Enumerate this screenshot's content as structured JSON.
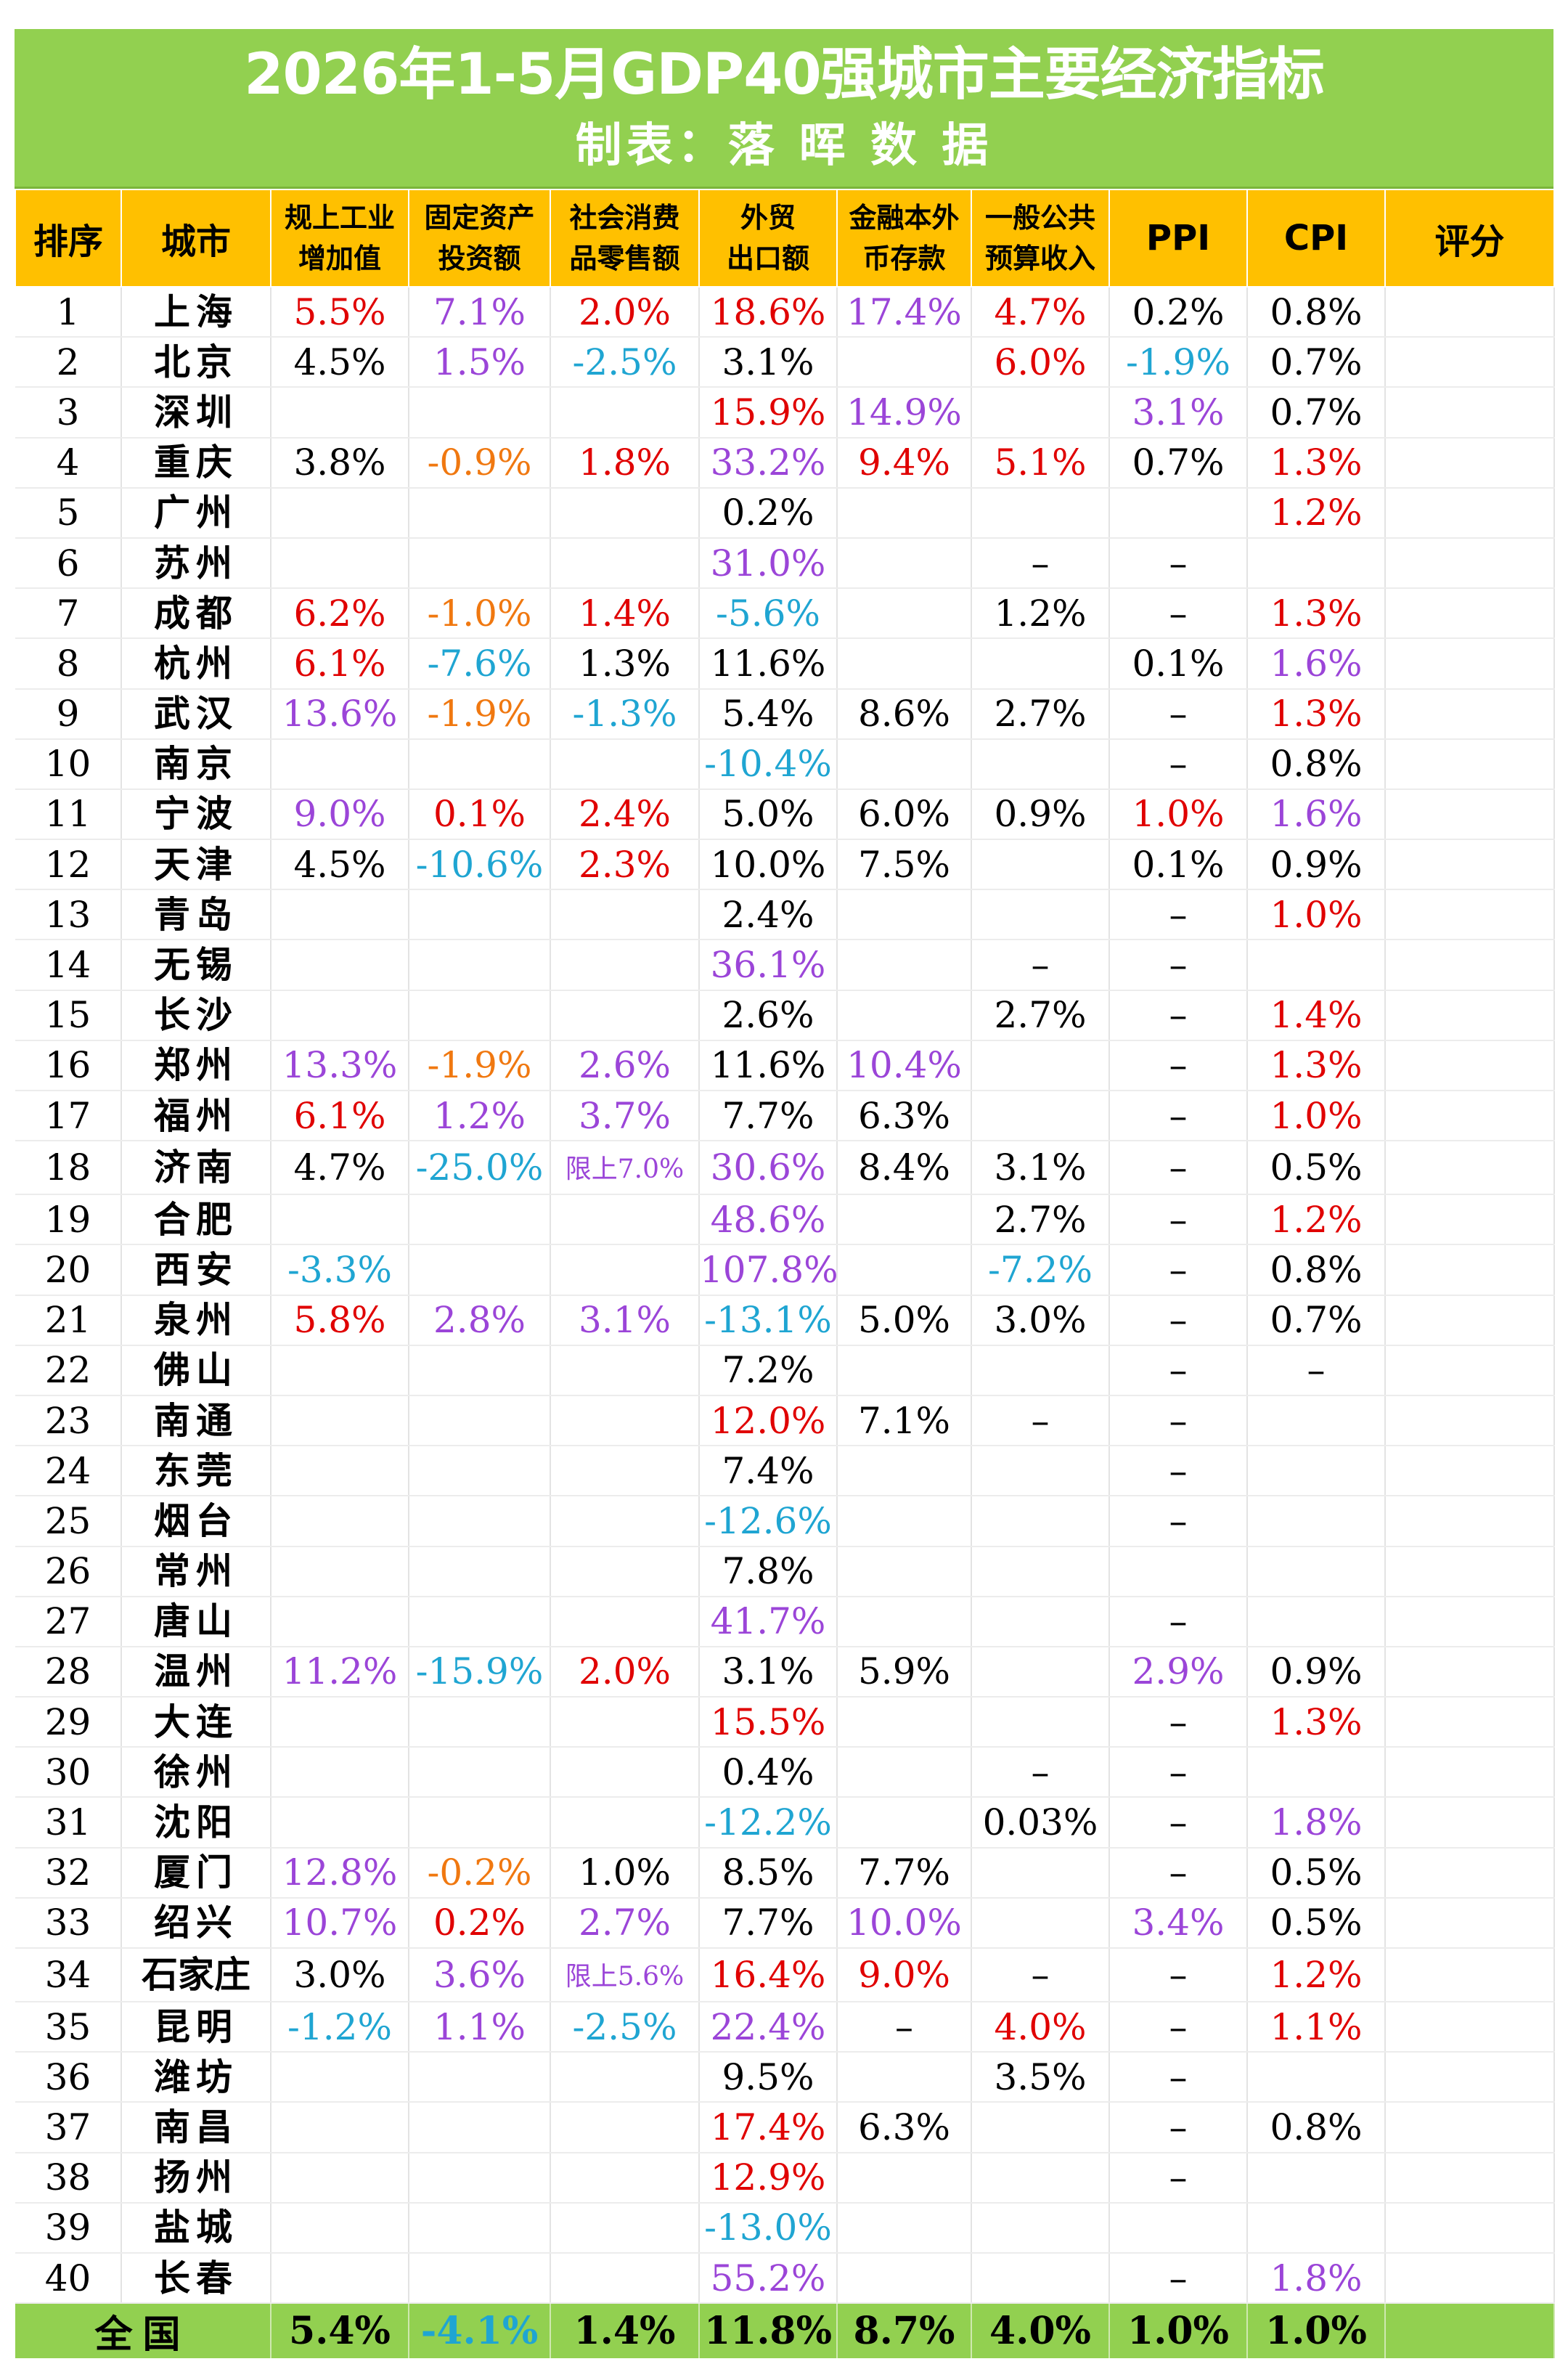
{
  "title": "2026年1-5月GDP40强城市主要经济指标",
  "subtitle": "制表：落 晖 数 据",
  "colors": {
    "red": "#e00000",
    "purple": "#9b45d8",
    "cyan": "#1fa5d2",
    "orange": "#f07810",
    "black": "#000000",
    "green": "#92d050",
    "header": "#ffc000"
  },
  "columns": [
    {
      "l1": "排序"
    },
    {
      "l1": "城市"
    },
    {
      "l1": "规上工业",
      "l2": "增加值"
    },
    {
      "l1": "固定资产",
      "l2": "投资额"
    },
    {
      "l1": "社会消费",
      "l2": "品零售额"
    },
    {
      "l1": "外贸",
      "l2": "出口额"
    },
    {
      "l1": "金融本外",
      "l2": "币存款"
    },
    {
      "l1": "一般公共",
      "l2": "预算收入"
    },
    {
      "l1": "PPI"
    },
    {
      "l1": "CPI"
    },
    {
      "l1": "评分"
    }
  ],
  "rows": [
    {
      "rank": "1",
      "city": "上海",
      "ind": {
        "v": "5.5%",
        "c": "red"
      },
      "inv": {
        "v": "7.1%",
        "c": "purple"
      },
      "ret": {
        "v": "2.0%",
        "c": "red"
      },
      "exp": {
        "v": "18.6%",
        "c": "red"
      },
      "dep": {
        "v": "17.4%",
        "c": "purple"
      },
      "rev": {
        "v": "4.7%",
        "c": "red"
      },
      "ppi": {
        "v": "0.2%",
        "c": "black"
      },
      "cpi": {
        "v": "0.8%",
        "c": "black"
      }
    },
    {
      "rank": "2",
      "city": "北京",
      "ind": {
        "v": "4.5%",
        "c": "black"
      },
      "inv": {
        "v": "1.5%",
        "c": "purple"
      },
      "ret": {
        "v": "-2.5%",
        "c": "cyan"
      },
      "exp": {
        "v": "3.1%",
        "c": "black"
      },
      "rev": {
        "v": "6.0%",
        "c": "red"
      },
      "ppi": {
        "v": "-1.9%",
        "c": "cyan"
      },
      "cpi": {
        "v": "0.7%",
        "c": "black"
      }
    },
    {
      "rank": "3",
      "city": "深圳",
      "exp": {
        "v": "15.9%",
        "c": "red"
      },
      "dep": {
        "v": "14.9%",
        "c": "purple"
      },
      "ppi": {
        "v": "3.1%",
        "c": "purple"
      },
      "cpi": {
        "v": "0.7%",
        "c": "black"
      }
    },
    {
      "rank": "4",
      "city": "重庆",
      "ind": {
        "v": "3.8%",
        "c": "black"
      },
      "inv": {
        "v": "-0.9%",
        "c": "orange"
      },
      "ret": {
        "v": "1.8%",
        "c": "red"
      },
      "exp": {
        "v": "33.2%",
        "c": "purple"
      },
      "dep": {
        "v": "9.4%",
        "c": "red"
      },
      "rev": {
        "v": "5.1%",
        "c": "red"
      },
      "ppi": {
        "v": "0.7%",
        "c": "black"
      },
      "cpi": {
        "v": "1.3%",
        "c": "red"
      }
    },
    {
      "rank": "5",
      "city": "广州",
      "exp": {
        "v": "0.2%",
        "c": "black"
      },
      "cpi": {
        "v": "1.2%",
        "c": "red"
      }
    },
    {
      "rank": "6",
      "city": "苏州",
      "exp": {
        "v": "31.0%",
        "c": "purple"
      },
      "rev": {
        "v": "–",
        "c": "black"
      },
      "ppi": {
        "v": "–",
        "c": "black"
      }
    },
    {
      "rank": "7",
      "city": "成都",
      "ind": {
        "v": "6.2%",
        "c": "red"
      },
      "inv": {
        "v": "-1.0%",
        "c": "orange"
      },
      "ret": {
        "v": "1.4%",
        "c": "red"
      },
      "exp": {
        "v": "-5.6%",
        "c": "cyan"
      },
      "rev": {
        "v": "1.2%",
        "c": "black"
      },
      "ppi": {
        "v": "–",
        "c": "black"
      },
      "cpi": {
        "v": "1.3%",
        "c": "red"
      }
    },
    {
      "rank": "8",
      "city": "杭州",
      "ind": {
        "v": "6.1%",
        "c": "red"
      },
      "inv": {
        "v": "-7.6%",
        "c": "cyan"
      },
      "ret": {
        "v": "1.3%",
        "c": "black"
      },
      "exp": {
        "v": "11.6%",
        "c": "black"
      },
      "ppi": {
        "v": "0.1%",
        "c": "black"
      },
      "cpi": {
        "v": "1.6%",
        "c": "purple"
      }
    },
    {
      "rank": "9",
      "city": "武汉",
      "ind": {
        "v": "13.6%",
        "c": "purple"
      },
      "inv": {
        "v": "-1.9%",
        "c": "orange"
      },
      "ret": {
        "v": "-1.3%",
        "c": "cyan"
      },
      "exp": {
        "v": "5.4%",
        "c": "black"
      },
      "dep": {
        "v": "8.6%",
        "c": "black"
      },
      "rev": {
        "v": "2.7%",
        "c": "black"
      },
      "ppi": {
        "v": "–",
        "c": "black"
      },
      "cpi": {
        "v": "1.3%",
        "c": "red"
      }
    },
    {
      "rank": "10",
      "city": "南京",
      "exp": {
        "v": "-10.4%",
        "c": "cyan"
      },
      "ppi": {
        "v": "–",
        "c": "black"
      },
      "cpi": {
        "v": "0.8%",
        "c": "black"
      }
    },
    {
      "rank": "11",
      "city": "宁波",
      "ind": {
        "v": "9.0%",
        "c": "purple"
      },
      "inv": {
        "v": "0.1%",
        "c": "red"
      },
      "ret": {
        "v": "2.4%",
        "c": "red"
      },
      "exp": {
        "v": "5.0%",
        "c": "black"
      },
      "dep": {
        "v": "6.0%",
        "c": "black"
      },
      "rev": {
        "v": "0.9%",
        "c": "black"
      },
      "ppi": {
        "v": "1.0%",
        "c": "red"
      },
      "cpi": {
        "v": "1.6%",
        "c": "purple"
      }
    },
    {
      "rank": "12",
      "city": "天津",
      "ind": {
        "v": "4.5%",
        "c": "black"
      },
      "inv": {
        "v": "-10.6%",
        "c": "cyan"
      },
      "ret": {
        "v": "2.3%",
        "c": "red"
      },
      "exp": {
        "v": "10.0%",
        "c": "black"
      },
      "dep": {
        "v": "7.5%",
        "c": "black"
      },
      "ppi": {
        "v": "0.1%",
        "c": "black"
      },
      "cpi": {
        "v": "0.9%",
        "c": "black"
      }
    },
    {
      "rank": "13",
      "city": "青岛",
      "exp": {
        "v": "2.4%",
        "c": "black"
      },
      "ppi": {
        "v": "–",
        "c": "black"
      },
      "cpi": {
        "v": "1.0%",
        "c": "red"
      }
    },
    {
      "rank": "14",
      "city": "无锡",
      "exp": {
        "v": "36.1%",
        "c": "purple"
      },
      "rev": {
        "v": "–",
        "c": "black"
      },
      "ppi": {
        "v": "–",
        "c": "black"
      }
    },
    {
      "rank": "15",
      "city": "长沙",
      "exp": {
        "v": "2.6%",
        "c": "black"
      },
      "rev": {
        "v": "2.7%",
        "c": "black"
      },
      "ppi": {
        "v": "–",
        "c": "black"
      },
      "cpi": {
        "v": "1.4%",
        "c": "red"
      }
    },
    {
      "rank": "16",
      "city": "郑州",
      "ind": {
        "v": "13.3%",
        "c": "purple"
      },
      "inv": {
        "v": "-1.9%",
        "c": "orange"
      },
      "ret": {
        "v": "2.6%",
        "c": "purple"
      },
      "exp": {
        "v": "11.6%",
        "c": "black"
      },
      "dep": {
        "v": "10.4%",
        "c": "purple"
      },
      "ppi": {
        "v": "–",
        "c": "black"
      },
      "cpi": {
        "v": "1.3%",
        "c": "red"
      }
    },
    {
      "rank": "17",
      "city": "福州",
      "ind": {
        "v": "6.1%",
        "c": "red"
      },
      "inv": {
        "v": "1.2%",
        "c": "purple"
      },
      "ret": {
        "v": "3.7%",
        "c": "purple"
      },
      "exp": {
        "v": "7.7%",
        "c": "black"
      },
      "dep": {
        "v": "6.3%",
        "c": "black"
      },
      "ppi": {
        "v": "–",
        "c": "black"
      },
      "cpi": {
        "v": "1.0%",
        "c": "red"
      }
    },
    {
      "rank": "18",
      "city": "济南",
      "ind": {
        "v": "4.7%",
        "c": "black"
      },
      "inv": {
        "v": "-25.0%",
        "c": "cyan"
      },
      "ret": {
        "v": "限上7.0%",
        "c": "purple",
        "small": true
      },
      "exp": {
        "v": "30.6%",
        "c": "purple"
      },
      "dep": {
        "v": "8.4%",
        "c": "black"
      },
      "rev": {
        "v": "3.1%",
        "c": "black"
      },
      "ppi": {
        "v": "–",
        "c": "black"
      },
      "cpi": {
        "v": "0.5%",
        "c": "black"
      }
    },
    {
      "rank": "19",
      "city": "合肥",
      "exp": {
        "v": "48.6%",
        "c": "purple"
      },
      "rev": {
        "v": "2.7%",
        "c": "black"
      },
      "ppi": {
        "v": "–",
        "c": "black"
      },
      "cpi": {
        "v": "1.2%",
        "c": "red"
      }
    },
    {
      "rank": "20",
      "city": "西安",
      "ind": {
        "v": "-3.3%",
        "c": "cyan"
      },
      "exp": {
        "v": "107.8%",
        "c": "purple"
      },
      "rev": {
        "v": "-7.2%",
        "c": "cyan"
      },
      "ppi": {
        "v": "–",
        "c": "black"
      },
      "cpi": {
        "v": "0.8%",
        "c": "black"
      }
    },
    {
      "rank": "21",
      "city": "泉州",
      "ind": {
        "v": "5.8%",
        "c": "red"
      },
      "inv": {
        "v": "2.8%",
        "c": "purple"
      },
      "ret": {
        "v": "3.1%",
        "c": "purple"
      },
      "exp": {
        "v": "-13.1%",
        "c": "cyan"
      },
      "dep": {
        "v": "5.0%",
        "c": "black"
      },
      "rev": {
        "v": "3.0%",
        "c": "black"
      },
      "ppi": {
        "v": "–",
        "c": "black"
      },
      "cpi": {
        "v": "0.7%",
        "c": "black"
      }
    },
    {
      "rank": "22",
      "city": "佛山",
      "exp": {
        "v": "7.2%",
        "c": "black"
      },
      "ppi": {
        "v": "–",
        "c": "black"
      },
      "cpi": {
        "v": "–",
        "c": "black"
      }
    },
    {
      "rank": "23",
      "city": "南通",
      "exp": {
        "v": "12.0%",
        "c": "red"
      },
      "dep": {
        "v": "7.1%",
        "c": "black"
      },
      "rev": {
        "v": "–",
        "c": "black"
      },
      "ppi": {
        "v": "–",
        "c": "black"
      }
    },
    {
      "rank": "24",
      "city": "东莞",
      "exp": {
        "v": "7.4%",
        "c": "black"
      },
      "ppi": {
        "v": "–",
        "c": "black"
      }
    },
    {
      "rank": "25",
      "city": "烟台",
      "exp": {
        "v": "-12.6%",
        "c": "cyan"
      },
      "ppi": {
        "v": "–",
        "c": "black"
      }
    },
    {
      "rank": "26",
      "city": "常州",
      "exp": {
        "v": "7.8%",
        "c": "black"
      }
    },
    {
      "rank": "27",
      "city": "唐山",
      "exp": {
        "v": "41.7%",
        "c": "purple"
      },
      "ppi": {
        "v": "–",
        "c": "black"
      }
    },
    {
      "rank": "28",
      "city": "温州",
      "ind": {
        "v": "11.2%",
        "c": "purple"
      },
      "inv": {
        "v": "-15.9%",
        "c": "cyan"
      },
      "ret": {
        "v": "2.0%",
        "c": "red"
      },
      "exp": {
        "v": "3.1%",
        "c": "black"
      },
      "dep": {
        "v": "5.9%",
        "c": "black"
      },
      "ppi": {
        "v": "2.9%",
        "c": "purple"
      },
      "cpi": {
        "v": "0.9%",
        "c": "black"
      }
    },
    {
      "rank": "29",
      "city": "大连",
      "exp": {
        "v": "15.5%",
        "c": "red"
      },
      "ppi": {
        "v": "–",
        "c": "black"
      },
      "cpi": {
        "v": "1.3%",
        "c": "red"
      }
    },
    {
      "rank": "30",
      "city": "徐州",
      "exp": {
        "v": "0.4%",
        "c": "black"
      },
      "rev": {
        "v": "–",
        "c": "black"
      },
      "ppi": {
        "v": "–",
        "c": "black"
      }
    },
    {
      "rank": "31",
      "city": "沈阳",
      "exp": {
        "v": "-12.2%",
        "c": "cyan"
      },
      "rev": {
        "v": "0.03%",
        "c": "black"
      },
      "ppi": {
        "v": "–",
        "c": "black"
      },
      "cpi": {
        "v": "1.8%",
        "c": "purple"
      }
    },
    {
      "rank": "32",
      "city": "厦门",
      "ind": {
        "v": "12.8%",
        "c": "purple"
      },
      "inv": {
        "v": "-0.2%",
        "c": "orange"
      },
      "ret": {
        "v": "1.0%",
        "c": "black"
      },
      "exp": {
        "v": "8.5%",
        "c": "black"
      },
      "dep": {
        "v": "7.7%",
        "c": "black"
      },
      "ppi": {
        "v": "–",
        "c": "black"
      },
      "cpi": {
        "v": "0.5%",
        "c": "black"
      }
    },
    {
      "rank": "33",
      "city": "绍兴",
      "ind": {
        "v": "10.7%",
        "c": "purple"
      },
      "inv": {
        "v": "0.2%",
        "c": "red"
      },
      "ret": {
        "v": "2.7%",
        "c": "purple"
      },
      "exp": {
        "v": "7.7%",
        "c": "black"
      },
      "dep": {
        "v": "10.0%",
        "c": "purple"
      },
      "ppi": {
        "v": "3.4%",
        "c": "purple"
      },
      "cpi": {
        "v": "0.5%",
        "c": "black"
      }
    },
    {
      "rank": "34",
      "city": "石家庄",
      "long": true,
      "ind": {
        "v": "3.0%",
        "c": "black"
      },
      "inv": {
        "v": "3.6%",
        "c": "purple"
      },
      "ret": {
        "v": "限上5.6%",
        "c": "purple",
        "small": true
      },
      "exp": {
        "v": "16.4%",
        "c": "red"
      },
      "dep": {
        "v": "9.0%",
        "c": "red"
      },
      "rev": {
        "v": "–",
        "c": "black"
      },
      "ppi": {
        "v": "–",
        "c": "black"
      },
      "cpi": {
        "v": "1.2%",
        "c": "red"
      }
    },
    {
      "rank": "35",
      "city": "昆明",
      "ind": {
        "v": "-1.2%",
        "c": "cyan"
      },
      "inv": {
        "v": "1.1%",
        "c": "purple"
      },
      "ret": {
        "v": "-2.5%",
        "c": "cyan"
      },
      "exp": {
        "v": "22.4%",
        "c": "purple"
      },
      "dep": {
        "v": "–",
        "c": "black"
      },
      "rev": {
        "v": "4.0%",
        "c": "red"
      },
      "ppi": {
        "v": "–",
        "c": "black"
      },
      "cpi": {
        "v": "1.1%",
        "c": "red"
      }
    },
    {
      "rank": "36",
      "city": "潍坊",
      "exp": {
        "v": "9.5%",
        "c": "black"
      },
      "rev": {
        "v": "3.5%",
        "c": "black"
      },
      "ppi": {
        "v": "–",
        "c": "black"
      }
    },
    {
      "rank": "37",
      "city": "南昌",
      "exp": {
        "v": "17.4%",
        "c": "red"
      },
      "dep": {
        "v": "6.3%",
        "c": "black"
      },
      "ppi": {
        "v": "–",
        "c": "black"
      },
      "cpi": {
        "v": "0.8%",
        "c": "black"
      }
    },
    {
      "rank": "38",
      "city": "扬州",
      "exp": {
        "v": "12.9%",
        "c": "red"
      },
      "ppi": {
        "v": "–",
        "c": "black"
      }
    },
    {
      "rank": "39",
      "city": "盐城",
      "exp": {
        "v": "-13.0%",
        "c": "cyan"
      }
    },
    {
      "rank": "40",
      "city": "长春",
      "exp": {
        "v": "55.2%",
        "c": "purple"
      },
      "ppi": {
        "v": "–",
        "c": "black"
      },
      "cpi": {
        "v": "1.8%",
        "c": "purple"
      }
    }
  ],
  "national": {
    "label": "全国",
    "ind": {
      "v": "5.4%",
      "c": "black"
    },
    "inv": {
      "v": "-4.1%",
      "c": "cyan"
    },
    "ret": {
      "v": "1.4%",
      "c": "black"
    },
    "exp": {
      "v": "11.8%",
      "c": "black"
    },
    "dep": {
      "v": "8.7%",
      "c": "black"
    },
    "rev": {
      "v": "4.0%",
      "c": "black"
    },
    "ppi": {
      "v": "1.0%",
      "c": "black"
    },
    "cpi": {
      "v": "1.0%",
      "c": "black"
    }
  }
}
